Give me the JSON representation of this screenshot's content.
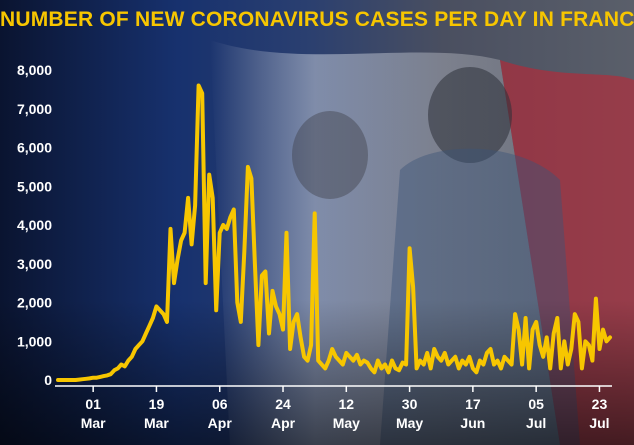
{
  "chart_data": {
    "type": "line",
    "title": "NUMBER OF NEW CORONAVIRUS CASES PER DAY IN FRANCE",
    "xlabel": "",
    "ylabel": "",
    "ylim": [
      0,
      8000
    ],
    "yticks": [
      0,
      1000,
      2000,
      3000,
      4000,
      5000,
      6000,
      7000,
      8000
    ],
    "ytick_labels": [
      "0",
      "1,000",
      "2,000",
      "3,000",
      "4,000",
      "5,000",
      "6,000",
      "7,000",
      "8,000"
    ],
    "xticks": [
      {
        "date": "2020-03-01",
        "day": "01",
        "month": "Mar"
      },
      {
        "date": "2020-03-19",
        "day": "19",
        "month": "Mar"
      },
      {
        "date": "2020-04-06",
        "day": "06",
        "month": "Apr"
      },
      {
        "date": "2020-04-24",
        "day": "24",
        "month": "Apr"
      },
      {
        "date": "2020-05-12",
        "day": "12",
        "month": "May"
      },
      {
        "date": "2020-05-30",
        "day": "30",
        "month": "May"
      },
      {
        "date": "2020-06-17",
        "day": "17",
        "month": "Jun"
      },
      {
        "date": "2020-07-05",
        "day": "05",
        "month": "Jul"
      },
      {
        "date": "2020-07-23",
        "day": "23",
        "month": "Jul"
      }
    ],
    "grid": false,
    "line_color": "#f7c600",
    "series": [
      {
        "x": [
          "2020-02-20",
          "2020-02-21",
          "2020-02-22",
          "2020-02-23",
          "2020-02-24",
          "2020-02-25",
          "2020-02-26",
          "2020-02-27",
          "2020-02-28",
          "2020-02-29",
          "2020-03-01",
          "2020-03-02",
          "2020-03-03",
          "2020-03-04",
          "2020-03-05",
          "2020-03-06",
          "2020-03-07",
          "2020-03-08",
          "2020-03-09",
          "2020-03-10",
          "2020-03-11",
          "2020-03-12",
          "2020-03-13",
          "2020-03-14",
          "2020-03-15",
          "2020-03-16",
          "2020-03-17",
          "2020-03-18",
          "2020-03-19",
          "2020-03-20",
          "2020-03-21",
          "2020-03-22",
          "2020-03-23",
          "2020-03-24",
          "2020-03-25",
          "2020-03-26",
          "2020-03-27",
          "2020-03-28",
          "2020-03-29",
          "2020-03-30",
          "2020-03-31",
          "2020-04-01",
          "2020-04-02",
          "2020-04-03",
          "2020-04-04",
          "2020-04-05",
          "2020-04-06",
          "2020-04-07",
          "2020-04-08",
          "2020-04-09",
          "2020-04-10",
          "2020-04-11",
          "2020-04-12",
          "2020-04-13",
          "2020-04-14",
          "2020-04-15",
          "2020-04-16",
          "2020-04-17",
          "2020-04-18",
          "2020-04-19",
          "2020-04-20",
          "2020-04-21",
          "2020-04-22",
          "2020-04-23",
          "2020-04-24",
          "2020-04-25",
          "2020-04-26",
          "2020-04-27",
          "2020-04-28",
          "2020-04-29",
          "2020-04-30",
          "2020-05-01",
          "2020-05-02",
          "2020-05-03",
          "2020-05-04",
          "2020-05-05",
          "2020-05-06",
          "2020-05-07",
          "2020-05-08",
          "2020-05-09",
          "2020-05-10",
          "2020-05-11",
          "2020-05-12",
          "2020-05-13",
          "2020-05-14",
          "2020-05-15",
          "2020-05-16",
          "2020-05-17",
          "2020-05-18",
          "2020-05-19",
          "2020-05-20",
          "2020-05-21",
          "2020-05-22",
          "2020-05-23",
          "2020-05-24",
          "2020-05-25",
          "2020-05-26",
          "2020-05-27",
          "2020-05-28",
          "2020-05-29",
          "2020-05-30",
          "2020-05-31",
          "2020-06-01",
          "2020-06-02",
          "2020-06-03",
          "2020-06-04",
          "2020-06-05",
          "2020-06-06",
          "2020-06-07",
          "2020-06-08",
          "2020-06-09",
          "2020-06-10",
          "2020-06-11",
          "2020-06-12",
          "2020-06-13",
          "2020-06-14",
          "2020-06-15",
          "2020-06-16",
          "2020-06-17",
          "2020-06-18",
          "2020-06-19",
          "2020-06-20",
          "2020-06-21",
          "2020-06-22",
          "2020-06-23",
          "2020-06-24",
          "2020-06-25",
          "2020-06-26",
          "2020-06-27",
          "2020-06-28",
          "2020-06-29",
          "2020-06-30",
          "2020-07-01",
          "2020-07-02",
          "2020-07-03",
          "2020-07-04",
          "2020-07-05",
          "2020-07-06",
          "2020-07-07",
          "2020-07-08",
          "2020-07-09",
          "2020-07-10",
          "2020-07-11",
          "2020-07-12",
          "2020-07-13",
          "2020-07-14",
          "2020-07-15",
          "2020-07-16",
          "2020-07-17",
          "2020-07-18",
          "2020-07-19",
          "2020-07-20",
          "2020-07-21",
          "2020-07-22",
          "2020-07-23",
          "2020-07-24",
          "2020-07-25",
          "2020-07-26"
        ],
        "values": [
          0,
          0,
          0,
          0,
          0,
          0,
          10,
          20,
          30,
          40,
          60,
          60,
          80,
          100,
          120,
          150,
          250,
          300,
          400,
          350,
          500,
          600,
          800,
          900,
          1000,
          1200,
          1400,
          1600,
          1900,
          1800,
          1700,
          1500,
          3900,
          2500,
          3100,
          3600,
          3800,
          4700,
          3500,
          4500,
          7600,
          7400,
          2500,
          5300,
          4700,
          1800,
          3800,
          4000,
          3900,
          4200,
          4400,
          2000,
          1500,
          3300,
          5500,
          5200,
          3000,
          900,
          2700,
          2800,
          1200,
          2300,
          1900,
          1700,
          1300,
          3800,
          800,
          1500,
          1700,
          1100,
          600,
          500,
          900,
          4300,
          500,
          400,
          300,
          500,
          800,
          600,
          500,
          400,
          700,
          600,
          500,
          650,
          400,
          500,
          450,
          300,
          200,
          500,
          300,
          400,
          200,
          500,
          300,
          250,
          450,
          400,
          3400,
          2400,
          300,
          500,
          400,
          700,
          300,
          800,
          600,
          500,
          700,
          400,
          500,
          600,
          300,
          500,
          400,
          600,
          300,
          200,
          500,
          400,
          700,
          800,
          400,
          500,
          300,
          600,
          500,
          400,
          1700,
          1300,
          400,
          1600,
          300,
          1300,
          1500,
          900,
          600,
          1100,
          300,
          1200,
          1600,
          300,
          1000,
          400,
          800,
          1700,
          1500,
          300,
          1000,
          900,
          500,
          2100,
          800,
          1300,
          1000,
          1100
        ]
      }
    ]
  }
}
